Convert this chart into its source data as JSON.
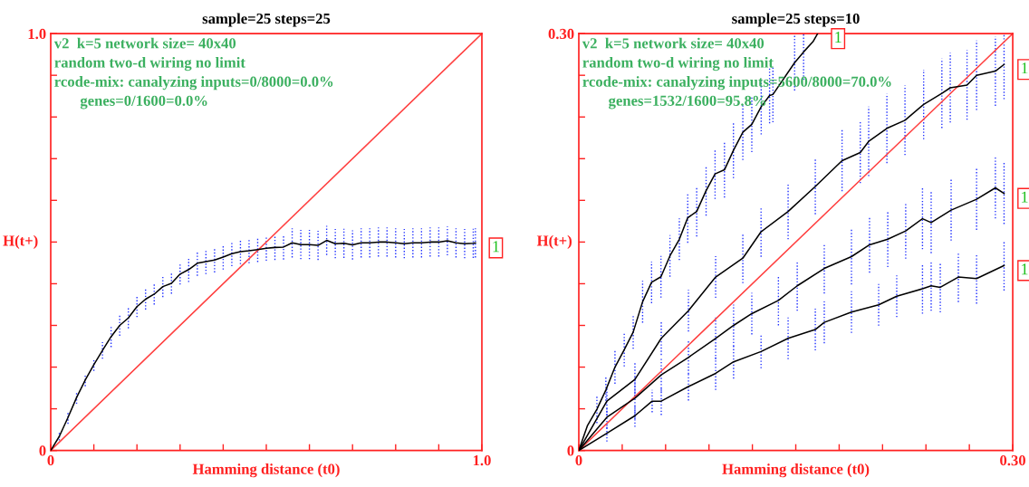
{
  "chart_data": [
    {
      "type": "line",
      "title": "sample=25 steps=25",
      "xlabel": "Hamming distance (t0)",
      "ylabel": "H(t+)",
      "xlim": [
        0,
        1.0
      ],
      "ylim": [
        0,
        1.0
      ],
      "xticks": [
        0,
        {
          "value": 0.1,
          "label": null
        },
        {
          "value": 0.2,
          "label": null
        },
        {
          "value": 0.3,
          "label": null
        },
        {
          "value": 0.4,
          "label": null
        },
        {
          "value": 0.5,
          "label": null
        },
        {
          "value": 0.6,
          "label": null
        },
        {
          "value": 0.7,
          "label": null
        },
        {
          "value": 0.8,
          "label": null
        },
        {
          "value": 0.9,
          "label": null
        },
        {
          "value": 1.0,
          "label": "1.0"
        }
      ],
      "yticks": [
        0,
        {
          "value": 0.1,
          "label": null
        },
        {
          "value": 0.2,
          "label": null
        },
        {
          "value": 0.3,
          "label": null
        },
        {
          "value": 0.4,
          "label": null
        },
        {
          "value": 0.5,
          "label": null
        },
        {
          "value": 0.6,
          "label": null
        },
        {
          "value": 0.7,
          "label": null
        },
        {
          "value": 0.8,
          "label": null
        },
        {
          "value": 0.9,
          "label": null
        },
        {
          "value": 1.0,
          "label": "1.0"
        }
      ],
      "grid": false,
      "marker": "none",
      "line_style": "solid",
      "annotations": [
        "v2  k=5 network size= 40x40",
        "random two-d wiring no limit",
        "rcode-mix: canalyzing inputs=0/8000=0.0%",
        "genes=0/1600=0.0%"
      ],
      "series": [
        {
          "x": [
            0,
            1.0
          ],
          "values": [
            0,
            1.0
          ],
          "color": "#ff4040"
        },
        {
          "name": "1",
          "color": "#000000",
          "x": [
            0,
            0.02,
            0.04,
            0.06,
            0.08,
            0.1,
            0.12,
            0.14,
            0.16,
            0.18,
            0.2,
            0.22,
            0.24,
            0.26,
            0.28,
            0.3,
            0.32,
            0.34,
            0.36,
            0.38,
            0.4,
            0.42,
            0.44,
            0.46,
            0.48,
            0.5,
            0.52,
            0.54,
            0.56,
            0.58,
            0.6,
            0.62,
            0.64,
            0.66,
            0.68,
            0.7,
            0.72,
            0.74,
            0.76,
            0.78,
            0.8,
            0.82,
            0.84,
            0.86,
            0.88,
            0.9,
            0.92,
            0.94,
            0.96,
            0.98,
            0.985
          ],
          "values": [
            0,
            0.034,
            0.079,
            0.127,
            0.169,
            0.206,
            0.24,
            0.273,
            0.3,
            0.318,
            0.345,
            0.363,
            0.375,
            0.393,
            0.401,
            0.423,
            0.434,
            0.449,
            0.453,
            0.457,
            0.464,
            0.472,
            0.477,
            0.479,
            0.482,
            0.485,
            0.487,
            0.488,
            0.498,
            0.494,
            0.494,
            0.492,
            0.504,
            0.496,
            0.497,
            0.493,
            0.498,
            0.498,
            0.5,
            0.5,
            0.498,
            0.496,
            0.498,
            0.498,
            0.5,
            0.5,
            0.503,
            0.498,
            0.496,
            0.497,
            0.498
          ],
          "errors": [
            0,
            0.01,
            0.015,
            0.015,
            0.015,
            0.015,
            0.02,
            0.025,
            0.025,
            0.025,
            0.025,
            0.025,
            0.025,
            0.025,
            0.025,
            0.025,
            0.03,
            0.03,
            0.03,
            0.03,
            0.03,
            0.03,
            0.03,
            0.03,
            0.03,
            0.03,
            0.03,
            0.03,
            0.035,
            0.035,
            0.035,
            0.035,
            0.035,
            0.035,
            0.035,
            0.035,
            0.035,
            0.035,
            0.035,
            0.035,
            0.035,
            0.035,
            0.035,
            0.035,
            0.035,
            0.035,
            0.035,
            0.035,
            0.035,
            0.035,
            0.035
          ]
        }
      ]
    },
    {
      "type": "line",
      "title": "sample=25 steps=10",
      "xlabel": "Hamming distance (t0)",
      "ylabel": "H(t+)",
      "xlim": [
        0,
        0.3
      ],
      "ylim": [
        0,
        0.3
      ],
      "xticks": [
        0,
        {
          "value": 0.03,
          "label": null
        },
        {
          "value": 0.06,
          "label": null
        },
        {
          "value": 0.09,
          "label": null
        },
        {
          "value": 0.12,
          "label": null
        },
        {
          "value": 0.15,
          "label": null
        },
        {
          "value": 0.18,
          "label": null
        },
        {
          "value": 0.21,
          "label": null
        },
        {
          "value": 0.24,
          "label": null
        },
        {
          "value": 0.27,
          "label": null
        },
        {
          "value": 0.3,
          "label": "0.30"
        }
      ],
      "yticks": [
        0,
        {
          "value": 0.03,
          "label": null
        },
        {
          "value": 0.06,
          "label": null
        },
        {
          "value": 0.09,
          "label": null
        },
        {
          "value": 0.12,
          "label": null
        },
        {
          "value": 0.15,
          "label": null
        },
        {
          "value": 0.18,
          "label": null
        },
        {
          "value": 0.21,
          "label": null
        },
        {
          "value": 0.24,
          "label": null
        },
        {
          "value": 0.27,
          "label": null
        },
        {
          "value": 0.3,
          "label": "0.30"
        }
      ],
      "grid": false,
      "marker": "none",
      "line_style": "solid",
      "annotations": [
        "v2  k=5 network size= 40x40",
        "random two-d wiring no limit",
        "rcode-mix: canalyzing inputs=5600/8000=70.0%",
        "genes=1532/1600=95.8%"
      ],
      "series": [
        {
          "x": [
            0,
            0.3
          ],
          "values": [
            0,
            0.3
          ],
          "color": "#ff4040"
        },
        {
          "name": "1",
          "color": "#000000",
          "x": [
            0,
            0.006,
            0.0125,
            0.0187,
            0.025,
            0.0314,
            0.0376,
            0.0441,
            0.0503,
            0.0568,
            0.063,
            0.0695,
            0.0753,
            0.0815,
            0.088,
            0.0942,
            0.1007,
            0.1069,
            0.1134,
            0.1196,
            0.1261,
            0.1319,
            0.1342,
            0.1492,
            0.1554,
            0.1619,
            0.1651
          ],
          "values": [
            0,
            0.018,
            0.0297,
            0.0435,
            0.06,
            0.0725,
            0.0852,
            0.107,
            0.121,
            0.125,
            0.14,
            0.152,
            0.1675,
            0.172,
            0.187,
            0.199,
            0.202,
            0.216,
            0.229,
            0.2347,
            0.2474,
            0.2555,
            0.2562,
            0.2791,
            0.2868,
            0.2942,
            0.3
          ],
          "errors": [
            0,
            null,
            0.01,
            0.01,
            0.012,
            0.012,
            0.012,
            0.015,
            0.015,
            0.015,
            0.015,
            0.015,
            0.018,
            0.018,
            0.018,
            0.018,
            0.02,
            0.02,
            0.02,
            0.02,
            0.02,
            0.02,
            0.02,
            0.02,
            0.02,
            null,
            null
          ]
        },
        {
          "name": "1",
          "color": "#000000",
          "x": [
            0,
            0.0194,
            0.0388,
            0.057,
            0.0758,
            0.0946,
            0.1134,
            0.126,
            0.1447,
            0.1635,
            0.182,
            0.1946,
            0.2004,
            0.213,
            0.2255,
            0.2384,
            0.251,
            0.2568,
            0.2684,
            0.275,
            0.288,
            0.294
          ],
          "values": [
            0,
            0.0355,
            0.0512,
            0.0807,
            0.1006,
            0.1248,
            0.1384,
            0.1574,
            0.172,
            0.19,
            0.2086,
            0.2144,
            0.2224,
            0.2318,
            0.2376,
            0.249,
            0.257,
            0.261,
            0.263,
            0.27,
            0.273,
            0.2778
          ],
          "errors": [
            0,
            0.01,
            0.012,
            0.012,
            0.015,
            0.015,
            0.018,
            0.018,
            0.02,
            0.02,
            0.022,
            0.022,
            0.025,
            0.025,
            0.025,
            0.025,
            0.025,
            0.025,
            0.025,
            0.025,
            0.025,
            0.025
          ]
        },
        {
          "name": "1",
          "color": "#000000",
          "x": [
            0,
            0.0194,
            0.0388,
            0.057,
            0.0758,
            0.0946,
            0.107,
            0.1196,
            0.138,
            0.151,
            0.1697,
            0.1885,
            0.201,
            0.2136,
            0.226,
            0.2376,
            0.2436,
            0.2574,
            0.275,
            0.288,
            0.294
          ],
          "values": [
            0,
            0.0239,
            0.0376,
            0.0544,
            0.067,
            0.0807,
            0.09,
            0.0985,
            0.108,
            0.1185,
            0.131,
            0.1395,
            0.148,
            0.152,
            0.158,
            0.1668,
            0.164,
            0.173,
            0.1808,
            0.189,
            0.185
          ],
          "errors": [
            0,
            0.008,
            0.015,
            0.012,
            0.012,
            0.015,
            0.015,
            0.015,
            0.018,
            0.018,
            0.018,
            0.02,
            0.02,
            0.02,
            0.02,
            0.022,
            0.022,
            0.022,
            0.022,
            0.022,
            0.022
          ]
        },
        {
          "name": "1",
          "color": "#000000",
          "x": [
            0,
            0.0194,
            0.0388,
            0.0507,
            0.057,
            0.0758,
            0.0946,
            0.107,
            0.126,
            0.1447,
            0.1635,
            0.1697,
            0.1885,
            0.2073,
            0.2198,
            0.2376,
            0.2436,
            0.2499,
            0.2624,
            0.275,
            0.294
          ],
          "values": [
            0,
            0.0124,
            0.025,
            0.0355,
            0.0355,
            0.046,
            0.0555,
            0.0638,
            0.0712,
            0.0807,
            0.087,
            0.0922,
            0.0996,
            0.1048,
            0.111,
            0.1164,
            0.1185,
            0.1174,
            0.1248,
            0.1237,
            0.1331
          ],
          "errors": [
            0,
            0.006,
            0.008,
            0.008,
            0.01,
            0.01,
            0.012,
            0.012,
            0.012,
            0.015,
            0.015,
            0.015,
            0.015,
            0.015,
            0.015,
            0.018,
            0.018,
            0.018,
            0.018,
            0.018,
            0.018
          ]
        }
      ]
    }
  ]
}
